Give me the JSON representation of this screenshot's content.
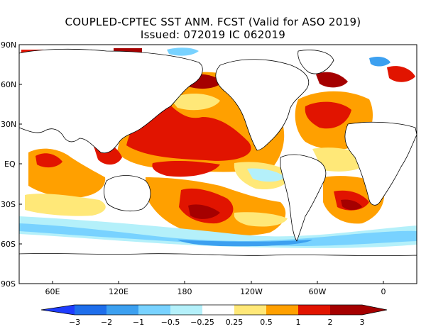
{
  "title": "COUPLED-CPTEC SST ANM. FCST  (Valid for ASO 2019)",
  "subtitle": "Issued:  072019 IC 062019",
  "lat_labels": [
    "90N",
    "60N",
    "30N",
    "EQ",
    "30S",
    "60S",
    "90S"
  ],
  "lon_labels": [
    "60E",
    "120E",
    "180",
    "120W",
    "60W",
    "0"
  ],
  "colorbar": {
    "tick_labels": [
      "−3",
      "−2",
      "−1",
      "−0.5",
      "−0.25",
      "0.25",
      "0.5",
      "1",
      "2",
      "3"
    ],
    "colors": [
      "#1e3cff",
      "#1e6eeb",
      "#3ca0f0",
      "#78d2ff",
      "#b4f0fa",
      "#ffffff",
      "#ffe878",
      "#ffa000",
      "#e11400",
      "#a50000"
    ]
  },
  "anomaly_colors": {
    "strong_warm": "#a50000",
    "warm": "#e11400",
    "moderate_warm": "#ffa000",
    "weak_warm": "#ffe878",
    "weak_cold": "#b4f0fa",
    "moderate_cold": "#78d2ff",
    "cold": "#3ca0f0"
  }
}
